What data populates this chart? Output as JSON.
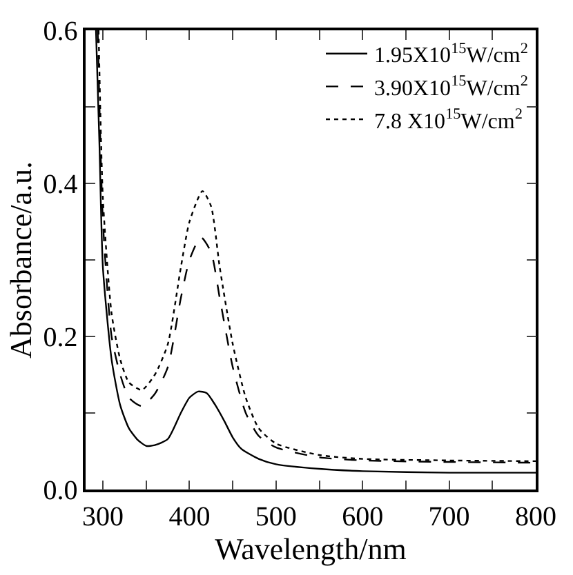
{
  "chart_data": {
    "type": "line",
    "xlabel": "Wavelength/nm",
    "ylabel": "Absorbance/a.u.",
    "xlim": [
      280,
      800
    ],
    "ylim": [
      0,
      0.6
    ],
    "xticks": [
      300,
      {
        "value": 350,
        "label": null
      },
      400,
      {
        "value": 450,
        "label": null
      },
      500,
      {
        "value": 550,
        "label": null
      },
      600,
      {
        "value": 650,
        "label": null
      },
      700,
      {
        "value": 750,
        "label": null
      },
      800
    ],
    "yticks": [
      {
        "value": 0,
        "label": "0.0"
      },
      {
        "value": 0.1,
        "label": null
      },
      0.2,
      {
        "value": 0.3,
        "label": null
      },
      0.4,
      {
        "value": 0.5,
        "label": null
      },
      0.6
    ],
    "grid": false,
    "legend": "top right",
    "marker": "none",
    "series": [
      {
        "name": "1.95X10$^{15}$W/cm$^{2}$",
        "color": "#000000",
        "line_style": "solid",
        "x": [
          292,
          296,
          300,
          310,
          320,
          330,
          340,
          350,
          360,
          375,
          390,
          400,
          410,
          420,
          430,
          440,
          450,
          460,
          480,
          500,
          550,
          600,
          700,
          800
        ],
        "values": [
          0.6,
          0.45,
          0.29,
          0.17,
          0.11,
          0.08,
          0.065,
          0.057,
          0.058,
          0.066,
          0.1,
          0.12,
          0.128,
          0.126,
          0.11,
          0.09,
          0.068,
          0.053,
          0.04,
          0.033,
          0.027,
          0.024,
          0.022,
          0.022
        ]
      },
      {
        "name": "3.90X10$^{15}$W/cm$^{2}$",
        "color": "#000000",
        "line_style": "dashed",
        "x": [
          294,
          300,
          310,
          320,
          330,
          345,
          360,
          375,
          390,
          400,
          413,
          425,
          435,
          450,
          465,
          480,
          500,
          550,
          600,
          700,
          800
        ],
        "values": [
          0.6,
          0.35,
          0.2,
          0.15,
          0.12,
          0.109,
          0.125,
          0.16,
          0.25,
          0.3,
          0.33,
          0.31,
          0.25,
          0.16,
          0.1,
          0.07,
          0.055,
          0.042,
          0.038,
          0.036,
          0.035
        ]
      },
      {
        "name": "7.8 X10$^{15}$W/cm$^{2}$",
        "color": "#000000",
        "line_style": "dotted",
        "x": [
          295,
          300,
          310,
          320,
          330,
          345,
          360,
          375,
          390,
          400,
          415,
          425,
          435,
          450,
          465,
          480,
          500,
          550,
          600,
          700,
          800
        ],
        "values": [
          0.6,
          0.38,
          0.23,
          0.17,
          0.14,
          0.13,
          0.15,
          0.19,
          0.29,
          0.35,
          0.39,
          0.37,
          0.29,
          0.19,
          0.12,
          0.08,
          0.06,
          0.045,
          0.04,
          0.038,
          0.037
        ]
      }
    ]
  }
}
